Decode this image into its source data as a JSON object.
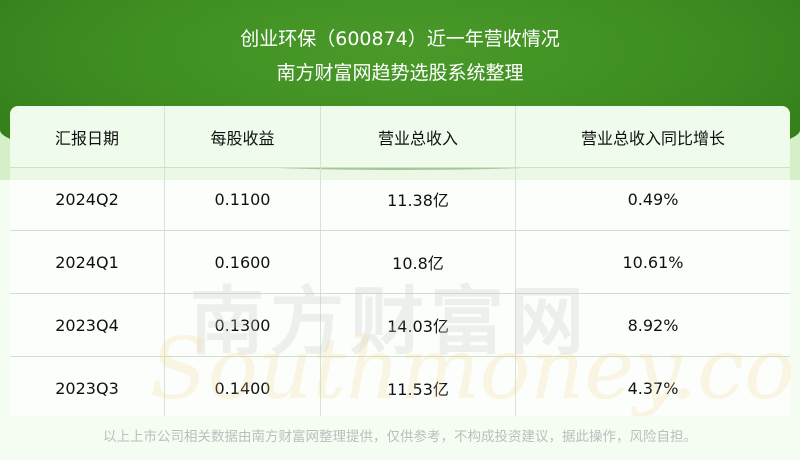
{
  "header": {
    "title": "创业环保（600874）近一年营收情况",
    "subtitle": "南方财富网趋势选股系统整理"
  },
  "watermark": {
    "cn": "南方财富网",
    "en": "Southmoney.com"
  },
  "colors": {
    "banner": "#3f8e22",
    "header_bg": "#effcec",
    "page_bg": "#f5fdf3"
  },
  "chart_data": {
    "type": "table",
    "columns": [
      "汇报日期",
      "每股收益",
      "营业总收入",
      "营业总收入同比增长"
    ],
    "rows": [
      [
        "2024Q2",
        "0.1100",
        "11.38亿",
        "0.49%"
      ],
      [
        "2024Q1",
        "0.1600",
        "10.8亿",
        "10.61%"
      ],
      [
        "2023Q4",
        "0.1300",
        "14.03亿",
        "8.92%"
      ],
      [
        "2023Q3",
        "0.1400",
        "11.53亿",
        "4.37%"
      ]
    ]
  },
  "footer": "以上上市公司相关数据由南方财富网整理提供，仅供参考，不构成投资建议，据此操作，风险自担。"
}
